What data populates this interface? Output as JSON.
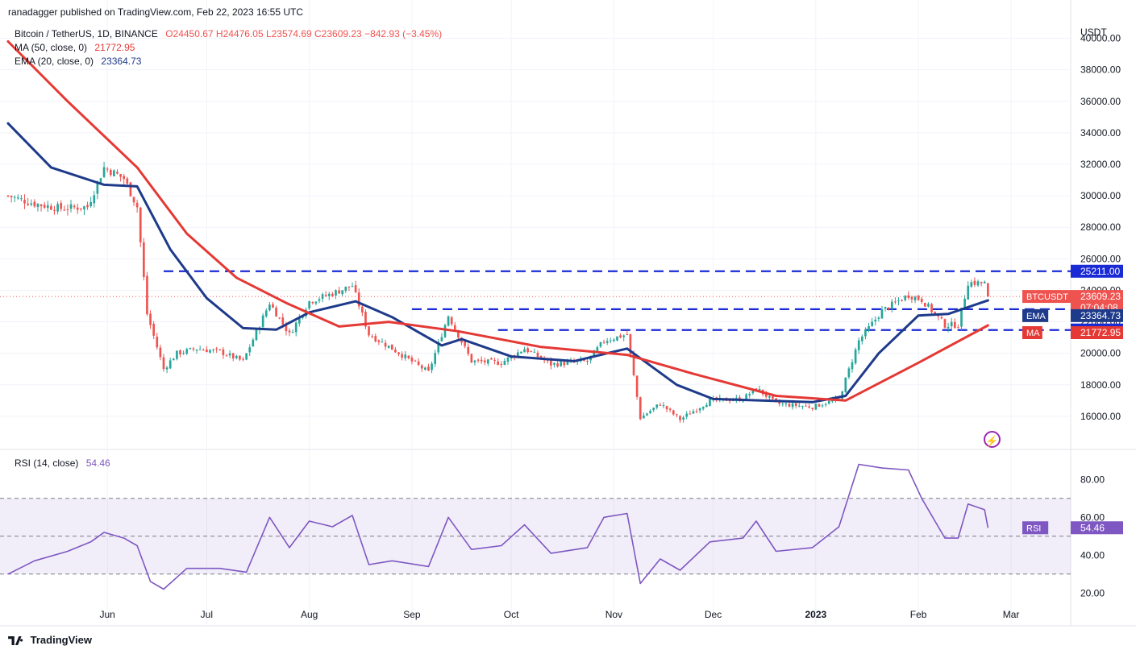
{
  "attribution": "ranadagger published on TradingView.com, Feb 22, 2023 16:55 UTC",
  "brand": "TradingView",
  "legend": {
    "symbol": "Bitcoin / TetherUS, 1D, BINANCE",
    "ohlc": "O24450.67  H24476.05  L23574.69  C23609.23  −842.93 (−3.45%)",
    "ma_label": "MA (50, close, 0)",
    "ma_value": "21772.95",
    "ema_label": "EMA (20, close, 0)",
    "ema_value": "23364.73",
    "rsi_label": "RSI (14, close)",
    "rsi_value": "54.46"
  },
  "colors": {
    "up": "#26a69a",
    "down": "#ef5350",
    "ema": "#1e3a8a",
    "ma": "#e53935",
    "rsi": "#7e57c2",
    "level": "#1a2bd6"
  },
  "chart_data": [
    {
      "type": "candlestick",
      "title": "Bitcoin / TetherUS, 1D, BINANCE",
      "ylabel": "USDT",
      "ylim": [
        14000,
        41000
      ],
      "y_ticks": [
        "16000.00",
        "18000.00",
        "20000.00",
        "22000.00",
        "24000.00",
        "26000.00",
        "28000.00",
        "30000.00",
        "32000.00",
        "34000.00",
        "36000.00",
        "38000.00",
        "40000.00"
      ],
      "x_ticks": [
        "Jun",
        "Jul",
        "Aug",
        "Sep",
        "Oct",
        "Nov",
        "Dec",
        "2023",
        "Feb",
        "Mar"
      ],
      "x_tick_dates": [
        "2022-06-01",
        "2022-07-01",
        "2022-08-01",
        "2022-09-01",
        "2022-10-01",
        "2022-11-01",
        "2022-12-01",
        "2023-01-01",
        "2023-02-01",
        "2023-03-01"
      ],
      "x_range": [
        "2022-05-02",
        "2023-03-19"
      ],
      "horizontal_levels": [
        {
          "value": 25211,
          "label": "25211.00",
          "from": "2022-06-18"
        },
        {
          "value": 22800,
          "label": "22800.00",
          "from": "2022-09-01"
        },
        {
          "value": 21480,
          "label": "21480.00",
          "from": "2022-09-27"
        }
      ],
      "price_anchors": [
        {
          "date": "2022-05-02",
          "close": 30000
        },
        {
          "date": "2022-05-10",
          "close": 29500
        },
        {
          "date": "2022-05-18",
          "close": 29200
        },
        {
          "date": "2022-05-26",
          "close": 29300
        },
        {
          "date": "2022-05-31",
          "close": 31800
        },
        {
          "date": "2022-06-06",
          "close": 31100
        },
        {
          "date": "2022-06-10",
          "close": 29300
        },
        {
          "date": "2022-06-13",
          "close": 22500
        },
        {
          "date": "2022-06-18",
          "close": 19000
        },
        {
          "date": "2022-06-22",
          "close": 20000
        },
        {
          "date": "2022-06-28",
          "close": 20300
        },
        {
          "date": "2022-07-05",
          "close": 20100
        },
        {
          "date": "2022-07-12",
          "close": 19500
        },
        {
          "date": "2022-07-20",
          "close": 23200
        },
        {
          "date": "2022-07-26",
          "close": 21200
        },
        {
          "date": "2022-08-01",
          "close": 23300
        },
        {
          "date": "2022-08-08",
          "close": 23800
        },
        {
          "date": "2022-08-14",
          "close": 24300
        },
        {
          "date": "2022-08-19",
          "close": 21200
        },
        {
          "date": "2022-08-26",
          "close": 20300
        },
        {
          "date": "2022-09-06",
          "close": 18800
        },
        {
          "date": "2022-09-12",
          "close": 22400
        },
        {
          "date": "2022-09-19",
          "close": 19500
        },
        {
          "date": "2022-09-28",
          "close": 19400
        },
        {
          "date": "2022-10-05",
          "close": 20300
        },
        {
          "date": "2022-10-13",
          "close": 19300
        },
        {
          "date": "2022-10-24",
          "close": 19500
        },
        {
          "date": "2022-10-29",
          "close": 20800
        },
        {
          "date": "2022-11-05",
          "close": 21200
        },
        {
          "date": "2022-11-09",
          "close": 15900
        },
        {
          "date": "2022-11-15",
          "close": 16800
        },
        {
          "date": "2022-11-21",
          "close": 15800
        },
        {
          "date": "2022-11-30",
          "close": 17000
        },
        {
          "date": "2022-12-10",
          "close": 17100
        },
        {
          "date": "2022-12-14",
          "close": 17800
        },
        {
          "date": "2022-12-20",
          "close": 16800
        },
        {
          "date": "2022-12-31",
          "close": 16600
        },
        {
          "date": "2023-01-08",
          "close": 17100
        },
        {
          "date": "2023-01-14",
          "close": 20800
        },
        {
          "date": "2023-01-21",
          "close": 22700
        },
        {
          "date": "2023-01-29",
          "close": 23700
        },
        {
          "date": "2023-02-02",
          "close": 23400
        },
        {
          "date": "2023-02-09",
          "close": 21800
        },
        {
          "date": "2023-02-13",
          "close": 21800
        },
        {
          "date": "2023-02-16",
          "close": 24500
        },
        {
          "date": "2023-02-21",
          "close": 24450
        },
        {
          "date": "2023-02-22",
          "close": 23609.23
        }
      ],
      "last_candle": {
        "date": "2023-02-22",
        "open": 24450.67,
        "high": 24476.05,
        "low": 23574.69,
        "close": 23609.23
      },
      "series": [
        {
          "name": "EMA (20, close, 0)",
          "last": 23364.73,
          "values": [
            {
              "date": "2022-05-02",
              "v": 34600
            },
            {
              "date": "2022-05-15",
              "v": 31800
            },
            {
              "date": "2022-05-31",
              "v": 30700
            },
            {
              "date": "2022-06-10",
              "v": 30600
            },
            {
              "date": "2022-06-20",
              "v": 26600
            },
            {
              "date": "2022-07-01",
              "v": 23500
            },
            {
              "date": "2022-07-12",
              "v": 21600
            },
            {
              "date": "2022-07-22",
              "v": 21500
            },
            {
              "date": "2022-08-01",
              "v": 22600
            },
            {
              "date": "2022-08-15",
              "v": 23300
            },
            {
              "date": "2022-08-26",
              "v": 22300
            },
            {
              "date": "2022-09-10",
              "v": 20500
            },
            {
              "date": "2022-09-16",
              "v": 20900
            },
            {
              "date": "2022-10-01",
              "v": 19800
            },
            {
              "date": "2022-10-20",
              "v": 19500
            },
            {
              "date": "2022-11-05",
              "v": 20300
            },
            {
              "date": "2022-11-20",
              "v": 18000
            },
            {
              "date": "2022-12-01",
              "v": 17100
            },
            {
              "date": "2022-12-31",
              "v": 16900
            },
            {
              "date": "2023-01-10",
              "v": 17300
            },
            {
              "date": "2023-01-20",
              "v": 20000
            },
            {
              "date": "2023-02-01",
              "v": 22400
            },
            {
              "date": "2023-02-10",
              "v": 22500
            },
            {
              "date": "2023-02-22",
              "v": 23364.73
            }
          ]
        },
        {
          "name": "MA (50, close, 0)",
          "last": 21772.95,
          "values": [
            {
              "date": "2022-05-02",
              "v": 39800
            },
            {
              "date": "2022-05-20",
              "v": 36000
            },
            {
              "date": "2022-06-10",
              "v": 31800
            },
            {
              "date": "2022-06-25",
              "v": 27600
            },
            {
              "date": "2022-07-10",
              "v": 24800
            },
            {
              "date": "2022-07-25",
              "v": 23200
            },
            {
              "date": "2022-08-10",
              "v": 21700
            },
            {
              "date": "2022-08-25",
              "v": 22000
            },
            {
              "date": "2022-09-15",
              "v": 21400
            },
            {
              "date": "2022-10-10",
              "v": 20400
            },
            {
              "date": "2022-11-05",
              "v": 19900
            },
            {
              "date": "2022-11-25",
              "v": 18700
            },
            {
              "date": "2022-12-20",
              "v": 17300
            },
            {
              "date": "2023-01-10",
              "v": 17000
            },
            {
              "date": "2023-02-01",
              "v": 19400
            },
            {
              "date": "2023-02-22",
              "v": 21772.95
            }
          ]
        }
      ],
      "badges": [
        {
          "text": "BTCUSDT",
          "value": "23609.23",
          "sub": "07:04:08"
        },
        {
          "text": "EMA",
          "value": "23364.73"
        },
        {
          "text": "MA",
          "value": "21772.95"
        }
      ]
    },
    {
      "type": "line",
      "title": "RSI (14, close)",
      "ylim": [
        15,
        95
      ],
      "y_ticks": [
        "20.00",
        "40.00",
        "60.00",
        "80.00"
      ],
      "band": [
        30,
        70
      ],
      "midline": 50,
      "series": [
        {
          "name": "RSI",
          "last": 54.46,
          "values": [
            {
              "date": "2022-05-02",
              "v": 30
            },
            {
              "date": "2022-05-10",
              "v": 37
            },
            {
              "date": "2022-05-20",
              "v": 42
            },
            {
              "date": "2022-05-27",
              "v": 47
            },
            {
              "date": "2022-05-31",
              "v": 52
            },
            {
              "date": "2022-06-06",
              "v": 49
            },
            {
              "date": "2022-06-10",
              "v": 45
            },
            {
              "date": "2022-06-14",
              "v": 26
            },
            {
              "date": "2022-06-18",
              "v": 22
            },
            {
              "date": "2022-06-25",
              "v": 33
            },
            {
              "date": "2022-07-05",
              "v": 33
            },
            {
              "date": "2022-07-13",
              "v": 31
            },
            {
              "date": "2022-07-20",
              "v": 60
            },
            {
              "date": "2022-07-26",
              "v": 44
            },
            {
              "date": "2022-08-01",
              "v": 58
            },
            {
              "date": "2022-08-08",
              "v": 55
            },
            {
              "date": "2022-08-14",
              "v": 61
            },
            {
              "date": "2022-08-19",
              "v": 35
            },
            {
              "date": "2022-08-26",
              "v": 37
            },
            {
              "date": "2022-09-06",
              "v": 34
            },
            {
              "date": "2022-09-12",
              "v": 60
            },
            {
              "date": "2022-09-19",
              "v": 43
            },
            {
              "date": "2022-09-28",
              "v": 45
            },
            {
              "date": "2022-10-05",
              "v": 56
            },
            {
              "date": "2022-10-13",
              "v": 41
            },
            {
              "date": "2022-10-24",
              "v": 44
            },
            {
              "date": "2022-10-29",
              "v": 60
            },
            {
              "date": "2022-11-05",
              "v": 62
            },
            {
              "date": "2022-11-09",
              "v": 25
            },
            {
              "date": "2022-11-15",
              "v": 38
            },
            {
              "date": "2022-11-21",
              "v": 32
            },
            {
              "date": "2022-11-30",
              "v": 47
            },
            {
              "date": "2022-12-10",
              "v": 49
            },
            {
              "date": "2022-12-14",
              "v": 58
            },
            {
              "date": "2022-12-20",
              "v": 42
            },
            {
              "date": "2022-12-31",
              "v": 44
            },
            {
              "date": "2023-01-08",
              "v": 55
            },
            {
              "date": "2023-01-14",
              "v": 88
            },
            {
              "date": "2023-01-21",
              "v": 86
            },
            {
              "date": "2023-01-29",
              "v": 85
            },
            {
              "date": "2023-02-02",
              "v": 70
            },
            {
              "date": "2023-02-09",
              "v": 49
            },
            {
              "date": "2023-02-13",
              "v": 49
            },
            {
              "date": "2023-02-16",
              "v": 67
            },
            {
              "date": "2023-02-21",
              "v": 64
            },
            {
              "date": "2023-02-22",
              "v": 54.46
            }
          ]
        }
      ]
    }
  ]
}
